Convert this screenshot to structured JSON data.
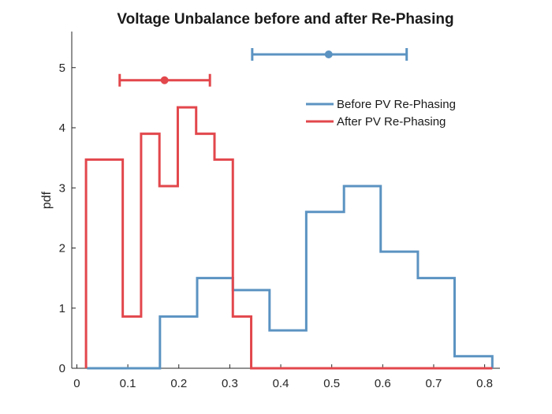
{
  "chart_data": {
    "type": "histogram-step",
    "title": "Voltage Unbalance before and after Re-Phasing",
    "xlabel": "",
    "ylabel": "pdf",
    "xlim": [
      -0.01,
      0.83
    ],
    "ylim": [
      0,
      5.6
    ],
    "xticks": [
      0,
      0.1,
      0.2,
      0.3,
      0.4,
      0.5,
      0.6,
      0.7,
      0.8
    ],
    "yticks": [
      0,
      1,
      2,
      3,
      4,
      5
    ],
    "legend_position": "top-right",
    "series": [
      {
        "name": "Before PV Re-Phasing",
        "color": "#5b93c2",
        "edges": [
          0.02,
          0.163,
          0.236,
          0.306,
          0.378,
          0.45,
          0.524,
          0.596,
          0.669,
          0.741,
          0.815
        ],
        "values": [
          0,
          0.86,
          1.5,
          1.3,
          0.63,
          2.6,
          3.03,
          1.94,
          1.5,
          0.2
        ],
        "errorbar": {
          "center": 0.494,
          "low": 0.344,
          "high": 0.647,
          "y": 5.22
        }
      },
      {
        "name": "After PV Re-Phasing",
        "color": "#e2474c",
        "edges": [
          0.018,
          0.09,
          0.126,
          0.162,
          0.198,
          0.234,
          0.27,
          0.306,
          0.342,
          0.815
        ],
        "values": [
          3.47,
          0.86,
          3.9,
          3.03,
          4.34,
          3.9,
          3.47,
          0.86,
          0
        ],
        "errorbar": {
          "center": 0.172,
          "low": 0.084,
          "high": 0.261,
          "y": 4.79
        }
      }
    ]
  }
}
